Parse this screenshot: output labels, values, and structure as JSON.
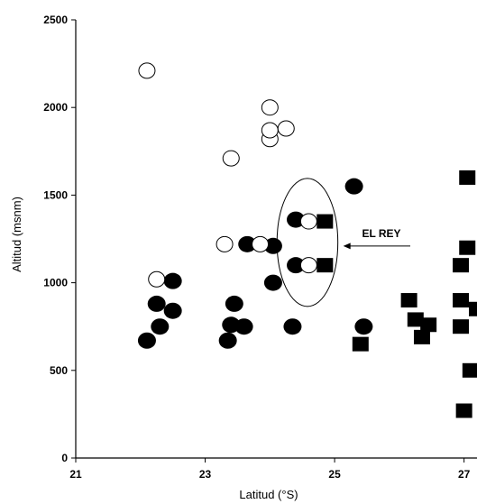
{
  "chart_data": {
    "type": "scatter",
    "xlabel": "Latitud (°S)",
    "ylabel": "Altitud (msnm)",
    "xlim": [
      21,
      27.2
    ],
    "ylim": [
      0,
      2500
    ],
    "xticks": [
      21,
      23,
      25,
      27
    ],
    "yticks": [
      0,
      500,
      1000,
      1500,
      2000,
      2500
    ],
    "grid": false,
    "series": [
      {
        "marker": "open-circle",
        "color": "#000000",
        "points": [
          {
            "x": 22.1,
            "y": 2210
          },
          {
            "x": 22.25,
            "y": 1020
          },
          {
            "x": 23.3,
            "y": 1220
          },
          {
            "x": 23.4,
            "y": 1710
          },
          {
            "x": 23.85,
            "y": 1220
          },
          {
            "x": 24.0,
            "y": 1820
          },
          {
            "x": 24.0,
            "y": 1870
          },
          {
            "x": 24.0,
            "y": 2000
          },
          {
            "x": 24.25,
            "y": 1880
          },
          {
            "x": 24.6,
            "y": 1350
          },
          {
            "x": 24.6,
            "y": 1100
          }
        ]
      },
      {
        "marker": "filled-circle",
        "color": "#000000",
        "points": [
          {
            "x": 22.1,
            "y": 670
          },
          {
            "x": 22.25,
            "y": 880
          },
          {
            "x": 22.3,
            "y": 750
          },
          {
            "x": 22.5,
            "y": 1010
          },
          {
            "x": 22.5,
            "y": 840
          },
          {
            "x": 23.35,
            "y": 670
          },
          {
            "x": 23.4,
            "y": 760
          },
          {
            "x": 23.45,
            "y": 880
          },
          {
            "x": 23.6,
            "y": 750
          },
          {
            "x": 23.65,
            "y": 1220
          },
          {
            "x": 24.05,
            "y": 1000
          },
          {
            "x": 24.05,
            "y": 1210
          },
          {
            "x": 24.35,
            "y": 750
          },
          {
            "x": 24.4,
            "y": 1360
          },
          {
            "x": 24.4,
            "y": 1100
          },
          {
            "x": 25.3,
            "y": 1550
          },
          {
            "x": 25.45,
            "y": 750
          }
        ]
      },
      {
        "marker": "filled-square",
        "color": "#000000",
        "points": [
          {
            "x": 24.85,
            "y": 1350
          },
          {
            "x": 24.85,
            "y": 1100
          },
          {
            "x": 25.4,
            "y": 650
          },
          {
            "x": 26.15,
            "y": 900
          },
          {
            "x": 26.25,
            "y": 790
          },
          {
            "x": 26.35,
            "y": 690
          },
          {
            "x": 26.45,
            "y": 760
          },
          {
            "x": 26.95,
            "y": 1100
          },
          {
            "x": 26.95,
            "y": 900
          },
          {
            "x": 26.95,
            "y": 750
          },
          {
            "x": 27.0,
            "y": 270
          },
          {
            "x": 27.05,
            "y": 1200
          },
          {
            "x": 27.05,
            "y": 1600
          },
          {
            "x": 27.1,
            "y": 500
          },
          {
            "x": 27.2,
            "y": 850
          }
        ]
      }
    ],
    "annotations": [
      {
        "text": "EL REY",
        "target": {
          "x": 24.6,
          "y": 1230
        },
        "ellipse": {
          "cx": 24.58,
          "cy": 1230,
          "rx": 0.47,
          "ry": 365
        }
      }
    ]
  }
}
